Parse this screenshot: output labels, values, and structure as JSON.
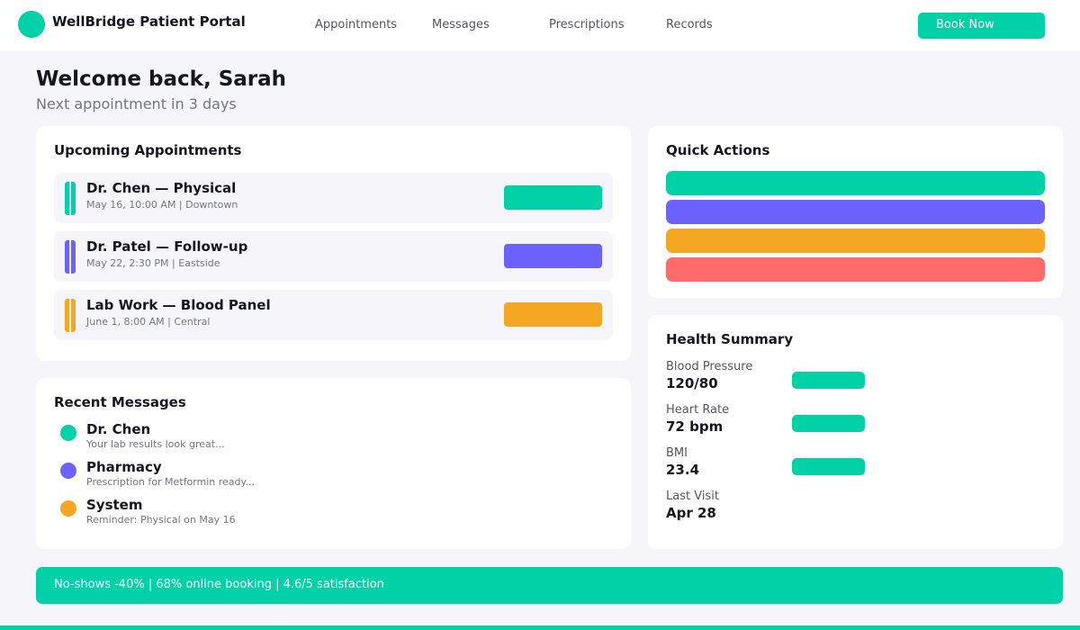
{
  "header": {
    "brand": "WellBridge Patient Portal",
    "nav": [
      "Appointments",
      "Messages",
      "Prescriptions",
      "Records"
    ],
    "book_label": "Book Now"
  },
  "welcome": {
    "title": "Welcome back, Sarah",
    "subtitle": "Next appointment in 3 days"
  },
  "appointments": {
    "title": "Upcoming Appointments",
    "items": [
      {
        "title": "Dr. Chen — Physical",
        "detail": "May 16, 10:00 AM | Downtown",
        "color": "#00d1a7"
      },
      {
        "title": "Dr. Patel — Follow-up",
        "detail": "May 22, 2:30 PM | Eastside",
        "color": "#6c63ff"
      },
      {
        "title": "Lab Work — Blood Panel",
        "detail": "June 1, 8:00 AM | Central",
        "color": "#f5a623"
      }
    ]
  },
  "quick_actions": {
    "title": "Quick Actions",
    "colors": [
      "#00d1a7",
      "#6c63ff",
      "#f5a623",
      "#ff6b6b"
    ]
  },
  "messages": {
    "title": "Recent Messages",
    "items": [
      {
        "from": "Dr. Chen",
        "preview": "Your lab results look great...",
        "color": "#00d1a7"
      },
      {
        "from": "Pharmacy",
        "preview": "Prescription for Metformin ready...",
        "color": "#6c63ff"
      },
      {
        "from": "System",
        "preview": "Reminder: Physical on May 16",
        "color": "#f5a623"
      }
    ]
  },
  "health": {
    "title": "Health Summary",
    "metrics": [
      {
        "label": "Blood Pressure",
        "value": "120/80"
      },
      {
        "label": "Heart Rate",
        "value": "72 bpm"
      },
      {
        "label": "BMI",
        "value": "23.4"
      },
      {
        "label": "Last Visit",
        "value": "Apr 28"
      }
    ]
  },
  "stats_banner": "No-shows -40% | 68% online booking | 4.6/5 satisfaction",
  "colors": {
    "accent": "#00d1a7",
    "purple": "#6c63ff",
    "orange": "#f5a623",
    "red": "#ff6b6b"
  }
}
